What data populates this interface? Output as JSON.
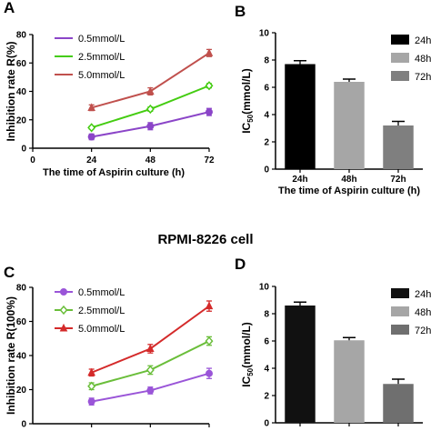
{
  "middle_title": "RPMI-8226 cell",
  "chart_data": [
    {
      "id": "A",
      "panel_label": "A",
      "type": "line",
      "x": [
        24,
        48,
        72
      ],
      "xlim": [
        0,
        72
      ],
      "x_ticks": [
        "0",
        "24",
        "48",
        "72"
      ],
      "ylim": [
        0,
        80
      ],
      "y_ticks": [
        "0",
        "20",
        "40",
        "60",
        "80"
      ],
      "xlabel": "The time of Aspirin culture (h)",
      "ylabel": "Inhibition rate R(%)",
      "legend_position": "top-left",
      "grid": false,
      "series": [
        {
          "name": "0.5mmol/L",
          "values": [
            8,
            15.5,
            25.5
          ],
          "errors": [
            2,
            2.5,
            2.5
          ],
          "color": "#8b45c8",
          "marker": "circle"
        },
        {
          "name": "2.5mmol/L",
          "values": [
            14.5,
            27.5,
            44
          ],
          "errors": [
            1,
            1.5,
            1.5
          ],
          "color": "#44cc11",
          "marker": "diamond"
        },
        {
          "name": "5.0mmol/L",
          "values": [
            28.5,
            40,
            67
          ],
          "errors": [
            2,
            2.5,
            2.5
          ],
          "color": "#c0504d",
          "marker": "triangle"
        }
      ]
    },
    {
      "id": "B",
      "panel_label": "B",
      "type": "bar",
      "categories": [
        "24h",
        "48h",
        "72h"
      ],
      "values": [
        7.7,
        6.4,
        3.2
      ],
      "errors": [
        0.25,
        0.2,
        0.3
      ],
      "colors": [
        "#000000",
        "#a6a6a6",
        "#7f7f7f"
      ],
      "ylim": [
        0,
        10
      ],
      "y_ticks": [
        "0",
        "2",
        "4",
        "6",
        "8",
        "10"
      ],
      "xlabel": "The time of Aspirin culture (h)",
      "ylabel_main": "IC",
      "ylabel_sub": "50",
      "ylabel_rest": "(mmol/L)",
      "legend": [
        "24h",
        "48h",
        "72h"
      ],
      "legend_position": "top-right"
    },
    {
      "id": "C",
      "panel_label": "C",
      "type": "line",
      "x": [
        24,
        48,
        72
      ],
      "xlim": [
        0,
        72
      ],
      "ylim": [
        0,
        80
      ],
      "y_ticks": [
        "0",
        "20",
        "40",
        "60",
        "80"
      ],
      "ylabel": "Inhibition rate R(100%)",
      "legend_position": "top-left",
      "grid": false,
      "series": [
        {
          "name": "0.5mmol/L",
          "values": [
            13,
            19.5,
            29.5
          ],
          "errors": [
            2,
            2,
            3
          ],
          "color": "#9a55d8",
          "marker": "circle"
        },
        {
          "name": "2.5mmol/L",
          "values": [
            22,
            31.5,
            48.5
          ],
          "errors": [
            2,
            2.5,
            2.5
          ],
          "color": "#6abe3a",
          "marker": "diamond"
        },
        {
          "name": "5.0mmol/L",
          "values": [
            30,
            44,
            69
          ],
          "errors": [
            2,
            2.5,
            3
          ],
          "color": "#d42a2a",
          "marker": "triangle"
        }
      ]
    },
    {
      "id": "D",
      "panel_label": "D",
      "type": "bar",
      "categories": [
        "24h",
        "48h",
        "72h"
      ],
      "values": [
        8.6,
        6.05,
        2.85
      ],
      "errors": [
        0.25,
        0.2,
        0.35
      ],
      "colors": [
        "#111111",
        "#a6a6a6",
        "#6f6f6f"
      ],
      "ylim": [
        0,
        10
      ],
      "y_ticks": [
        "0",
        "2",
        "4",
        "6",
        "8",
        "10"
      ],
      "ylabel_main": "IC",
      "ylabel_sub": "50",
      "ylabel_rest": "(mmol/L)",
      "legend": [
        "24h",
        "48h",
        "72h"
      ],
      "legend_position": "top-right"
    }
  ]
}
